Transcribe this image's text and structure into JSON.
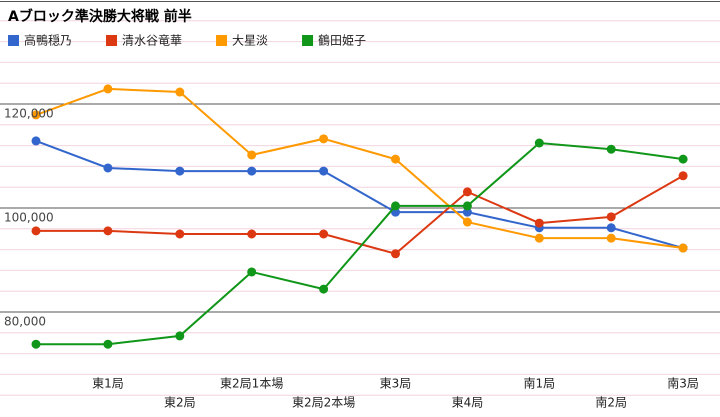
{
  "chart_data": {
    "type": "line",
    "title": "Aブロック準決勝大将戦 前半",
    "categories": [
      null,
      "東1局",
      "東2局",
      "東2局1本場",
      "東2局2本場",
      "東3局",
      "東4局",
      "南1局",
      "南2局",
      "南3局"
    ],
    "series": [
      {
        "name": "高鴨穏乃",
        "color": "#3366cc",
        "values": [
          112900,
          107700,
          107100,
          107100,
          107100,
          99200,
          99200,
          96200,
          96200,
          92300
        ]
      },
      {
        "name": "清水谷竜華",
        "color": "#dc3912",
        "values": [
          95600,
          95600,
          95000,
          95000,
          95000,
          91200,
          103100,
          97100,
          98300,
          106200
        ]
      },
      {
        "name": "大星淡",
        "color": "#ff9900",
        "values": [
          117900,
          122900,
          122300,
          110200,
          113300,
          109400,
          97300,
          94200,
          94200,
          92300
        ]
      },
      {
        "name": "鶴田姫子",
        "color": "#109618",
        "values": [
          73800,
          73800,
          75400,
          87700,
          84400,
          100400,
          100400,
          112500,
          111300,
          109400
        ]
      }
    ],
    "ylim": [
      60000,
      140000
    ],
    "yticks": [
      {
        "value": 80000,
        "label": "80,000"
      },
      {
        "value": 100000,
        "label": "100,000"
      },
      {
        "value": 120000,
        "label": "120,000"
      }
    ],
    "grid": true,
    "legend": "top"
  }
}
